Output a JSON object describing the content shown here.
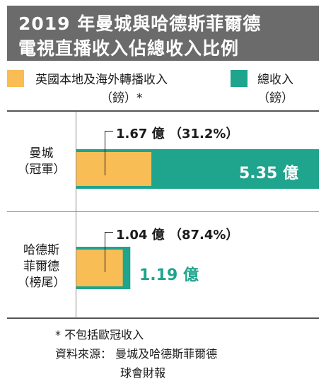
{
  "title": {
    "line1": "2019 年曼城與哈德斯菲爾德",
    "line2": "電視直播收入佔總收入比例"
  },
  "colors": {
    "uk_overseas": "#f8bd55",
    "total": "#1fa48d",
    "title_bg": "#6b6b6b"
  },
  "legend": [
    {
      "line1": "英國本地及海外轉播收入",
      "line2": "（鎊）*"
    },
    {
      "line1": "總收入",
      "line2": "（鎊）"
    }
  ],
  "chart_data": {
    "type": "bar",
    "orientation": "horizontal",
    "unit": "億",
    "categories": [
      {
        "line1": "曼城",
        "line2": "（冠軍）"
      },
      {
        "line1": "哈德斯",
        "line2": "菲爾德",
        "line3": "（榜尾）"
      }
    ],
    "series": [
      {
        "name": "英國本地及海外轉播收入（鎊）*",
        "values": [
          1.67,
          1.04
        ],
        "share_pct": [
          31.2,
          87.4
        ]
      },
      {
        "name": "總收入（鎊）",
        "values": [
          5.35,
          1.19
        ]
      }
    ],
    "labels": {
      "inner": [
        "1.67 億 （31.2%）",
        "1.04 億 （87.4%）"
      ],
      "total": [
        "5.35 億",
        "1.19 億"
      ]
    },
    "xlim": [
      0,
      5.35
    ]
  },
  "footnotes": {
    "note": "* 不包括歐冠收入",
    "source_line1": "資料來源： 曼城及哈德斯菲爾德",
    "source_line2": "球會財報"
  }
}
